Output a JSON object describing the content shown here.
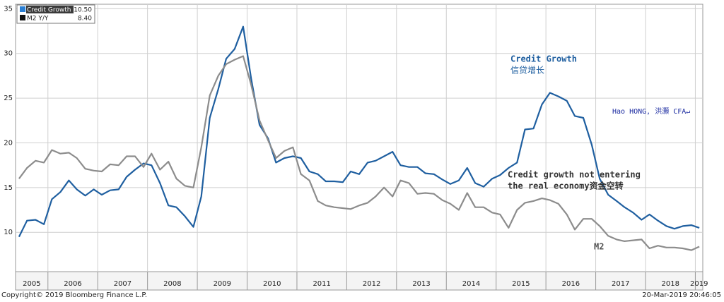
{
  "chart_data": {
    "type": "line",
    "xlim": [
      2005.35,
      2019.15
    ],
    "xticks": [
      2005,
      2006,
      2007,
      2008,
      2009,
      2010,
      2011,
      2012,
      2013,
      2014,
      2015,
      2016,
      2017,
      2018,
      2019
    ],
    "ylim": [
      5.6,
      35.5
    ],
    "yticks": [
      10,
      15,
      20,
      25,
      30,
      35
    ],
    "grid": true,
    "x": [
      2005.42,
      2005.58,
      2005.75,
      2005.92,
      2006.08,
      2006.25,
      2006.42,
      2006.58,
      2006.75,
      2006.92,
      2007.08,
      2007.25,
      2007.42,
      2007.58,
      2007.75,
      2007.92,
      2008.08,
      2008.25,
      2008.42,
      2008.58,
      2008.75,
      2008.92,
      2009.08,
      2009.25,
      2009.42,
      2009.58,
      2009.75,
      2009.92,
      2010.08,
      2010.25,
      2010.42,
      2010.58,
      2010.75,
      2010.92,
      2011.08,
      2011.25,
      2011.42,
      2011.58,
      2011.75,
      2011.92,
      2012.08,
      2012.25,
      2012.42,
      2012.58,
      2012.75,
      2012.92,
      2013.08,
      2013.25,
      2013.42,
      2013.58,
      2013.75,
      2013.92,
      2014.08,
      2014.25,
      2014.42,
      2014.58,
      2014.75,
      2014.92,
      2015.08,
      2015.25,
      2015.42,
      2015.58,
      2015.75,
      2015.92,
      2016.08,
      2016.25,
      2016.42,
      2016.58,
      2016.75,
      2016.92,
      2017.08,
      2017.25,
      2017.42,
      2017.58,
      2017.75,
      2017.92,
      2018.08,
      2018.25,
      2018.42,
      2018.58,
      2018.75,
      2018.92,
      2019.08
    ],
    "series": [
      {
        "name": "Credit Growth",
        "color": "#1f5fa0",
        "legend_color": "#2a7fd4",
        "last_value": {
          "value": 10.5,
          "label": "10.50"
        },
        "values": [
          9.5,
          11.3,
          11.4,
          10.9,
          13.7,
          14.5,
          15.8,
          14.8,
          14.1,
          14.8,
          14.2,
          14.7,
          14.8,
          16.2,
          17,
          17.7,
          17.5,
          15.5,
          13,
          12.8,
          11.8,
          10.6,
          14,
          22.8,
          26,
          29.4,
          30.5,
          33,
          27.2,
          22,
          20.5,
          17.8,
          18.3,
          18.5,
          18.3,
          16.8,
          16.5,
          15.7,
          15.7,
          15.6,
          16.8,
          16.5,
          17.8,
          18,
          18.5,
          19,
          17.5,
          17.3,
          17.3,
          16.6,
          16.5,
          15.9,
          15.4,
          15.8,
          17.2,
          15.5,
          15.1,
          16,
          16.4,
          17.2,
          17.8,
          21.5,
          21.6,
          24.3,
          25.6,
          25.2,
          24.7,
          23,
          22.8,
          19.8,
          16,
          14.2,
          13.5,
          12.8,
          12.2,
          11.4,
          12,
          11.3,
          10.7,
          10.4,
          10.7,
          10.8,
          10.5
        ]
      },
      {
        "name": "M2 Y/Y",
        "color": "#8c8c8c",
        "legend_color": "#111111",
        "last_value": {
          "value": 8.4,
          "label": "8.40"
        },
        "values": [
          16,
          17.2,
          18,
          17.8,
          19.2,
          18.8,
          18.9,
          18.3,
          17.1,
          16.9,
          16.8,
          17.6,
          17.5,
          18.5,
          18.5,
          17.3,
          18.8,
          17,
          17.9,
          16,
          15.2,
          15,
          19.5,
          25.3,
          27.5,
          28.8,
          29.3,
          29.7,
          26.5,
          22.5,
          20.3,
          18.3,
          19.1,
          19.5,
          16.5,
          15.8,
          13.5,
          13,
          12.8,
          12.7,
          12.6,
          13,
          13.3,
          14,
          15,
          14,
          15.8,
          15.5,
          14.3,
          14.4,
          14.3,
          13.6,
          13.2,
          12.5,
          14.4,
          12.8,
          12.8,
          12.2,
          12,
          10.5,
          12.5,
          13.3,
          13.5,
          13.8,
          13.6,
          13.2,
          12,
          10.3,
          11.5,
          11.5,
          10.7,
          9.6,
          9.2,
          9,
          9.1,
          9.2,
          8.2,
          8.5,
          8.3,
          8.3,
          8.2,
          8,
          8.4
        ]
      }
    ],
    "annotations": [
      {
        "text": "Credit Growth",
        "subtext": "信贷增长"
      },
      {
        "text": "Hao HONG, 洪灝 CFA↵"
      },
      {
        "text": "Credit growth not entering",
        "subtext": "the real economy资金空转"
      },
      {
        "text": "M2"
      }
    ],
    "footer_left": "Copyright© 2019 Bloomberg Finance L.P.",
    "footer_right": "20-Mar-2019 20:46:05"
  }
}
